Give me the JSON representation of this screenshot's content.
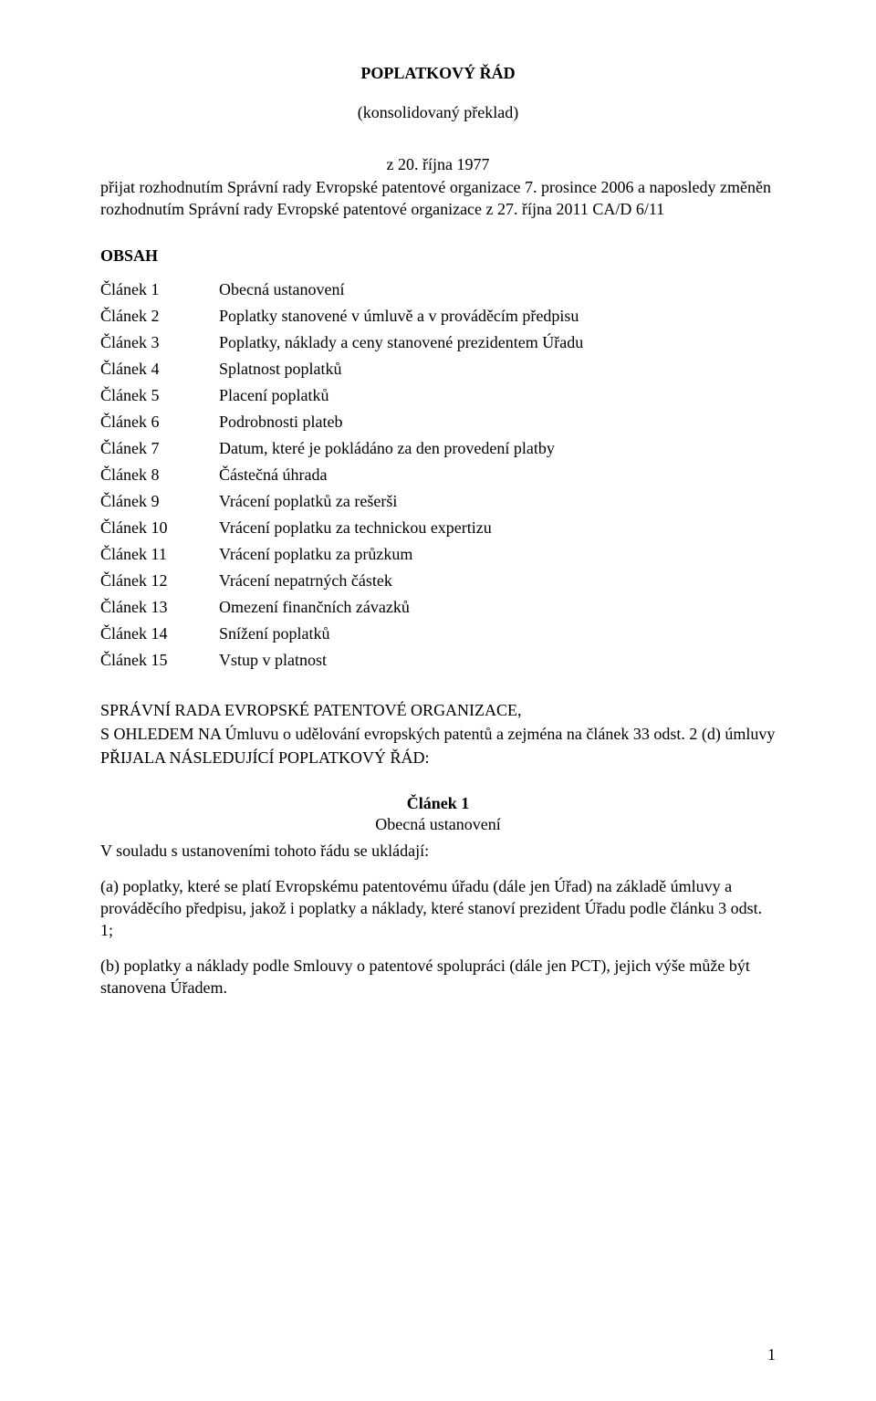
{
  "title": "POPLATKOVÝ ŘÁD",
  "subtitle": "(konsolidovaný překlad)",
  "adoption_line1": "z 20. října 1977",
  "adoption_line2": "přijat rozhodnutím Správní rady Evropské patentové organizace 7. prosince 2006 a naposledy změněn rozhodnutím Správní rady Evropské patentové organizace z 27. října 2011 CA/D 6/11",
  "obsah_heading": "OBSAH",
  "toc": [
    {
      "num": "Článek 1",
      "label": "Obecná ustanovení"
    },
    {
      "num": "Článek 2",
      "label": "Poplatky stanovené v úmluvě a v prováděcím předpisu"
    },
    {
      "num": "Článek 3",
      "label": "Poplatky, náklady a ceny stanovené prezidentem Úřadu"
    },
    {
      "num": "Článek 4",
      "label": "Splatnost poplatků"
    },
    {
      "num": "Článek 5",
      "label": "Placení poplatků"
    },
    {
      "num": "Článek 6",
      "label": "Podrobnosti plateb"
    },
    {
      "num": "Článek 7",
      "label": "Datum, které je pokládáno za den provedení platby"
    },
    {
      "num": "Článek 8",
      "label": "Částečná úhrada"
    },
    {
      "num": "Článek 9",
      "label": "Vrácení poplatků za rešerši"
    },
    {
      "num": "Článek 10",
      "label": "Vrácení poplatku za technickou expertizu"
    },
    {
      "num": "Článek 11",
      "label": "Vrácení poplatku za průzkum"
    },
    {
      "num": "Článek 12",
      "label": "Vrácení nepatrných částek"
    },
    {
      "num": "Článek 13",
      "label": "Omezení finančních závazků"
    },
    {
      "num": "Článek 14",
      "label": "Snížení poplatků"
    },
    {
      "num": "Článek 15",
      "label": "Vstup v platnost"
    }
  ],
  "body_p1": "SPRÁVNÍ RADA EVROPSKÉ PATENTOVÉ ORGANIZACE,",
  "body_p2": "S OHLEDEM NA Úmluvu o udělování evropských patentů a zejména na článek 33 odst. 2 (d) úmluvy",
  "body_p3": "PŘIJALA NÁSLEDUJÍCÍ POPLATKOVÝ ŘÁD:",
  "article1_heading": "Článek 1",
  "article1_sub": "Obecná ustanovení",
  "article1_intro": "V souladu s ustanoveními tohoto řádu se ukládají:",
  "article1_a": "(a) poplatky, které se platí Evropskému patentovému úřadu (dále jen Úřad) na základě úmluvy a prováděcího předpisu, jakož i poplatky a náklady, které stanoví prezident Úřadu podle článku 3 odst. 1;",
  "article1_b": "(b) poplatky a náklady podle Smlouvy o patentové spolupráci (dále jen PCT), jejich výše může být stanovena Úřadem.",
  "page_number": "1"
}
